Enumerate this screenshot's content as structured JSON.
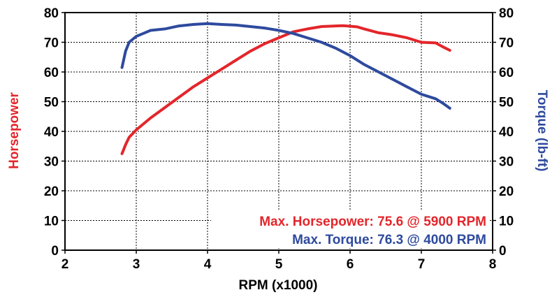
{
  "chart_data": {
    "type": "line",
    "xlabel": "RPM (x1000)",
    "ylabel_left": "Horsepower",
    "ylabel_right": "Torque (lb-ft)",
    "xlim": [
      2,
      8
    ],
    "ylim": [
      0,
      80
    ],
    "y2lim": [
      0,
      80
    ],
    "x_ticks": [
      2,
      3,
      4,
      5,
      6,
      7,
      8
    ],
    "y_ticks": [
      0,
      10,
      20,
      30,
      40,
      50,
      60,
      70,
      80
    ],
    "grid": true,
    "series": [
      {
        "name": "Horsepower",
        "axis": "left",
        "color": "#e3262b",
        "x": [
          2.8,
          2.85,
          2.9,
          3.0,
          3.1,
          3.2,
          3.4,
          3.6,
          3.8,
          4.0,
          4.2,
          4.4,
          4.6,
          4.8,
          5.0,
          5.2,
          5.4,
          5.6,
          5.8,
          5.9,
          6.0,
          6.1,
          6.2,
          6.4,
          6.6,
          6.8,
          7.0,
          7.2,
          7.3,
          7.4
        ],
        "values": [
          32.5,
          35.5,
          38,
          40.5,
          42.5,
          44.5,
          48,
          51.5,
          55,
          58,
          61,
          64,
          67,
          69.5,
          71.5,
          73.5,
          74.5,
          75.3,
          75.5,
          75.6,
          75.4,
          75.2,
          74.5,
          73.2,
          72.5,
          71.5,
          70,
          69.8,
          68.5,
          67.3
        ]
      },
      {
        "name": "Torque",
        "axis": "right",
        "color": "#2e4a9e",
        "x": [
          2.8,
          2.85,
          2.9,
          3.0,
          3.1,
          3.2,
          3.4,
          3.6,
          3.8,
          4.0,
          4.2,
          4.4,
          4.6,
          4.8,
          5.0,
          5.2,
          5.4,
          5.6,
          5.8,
          6.0,
          6.2,
          6.4,
          6.6,
          6.8,
          7.0,
          7.2,
          7.3,
          7.4
        ],
        "values": [
          61.5,
          67,
          70,
          72,
          73,
          74,
          74.5,
          75.5,
          76,
          76.3,
          76,
          75.8,
          75.3,
          74.8,
          74,
          73,
          71.5,
          70,
          68,
          65.5,
          62.5,
          60,
          57.5,
          55,
          52.5,
          51,
          49.5,
          47.8
        ]
      }
    ],
    "annotations": [
      {
        "text": "Max. Horsepower: 75.6 @ 5900 RPM",
        "color": "#e3262b"
      },
      {
        "text": "Max. Torque: 76.3 @ 4000 RPM",
        "color": "#2e4a9e"
      }
    ]
  }
}
